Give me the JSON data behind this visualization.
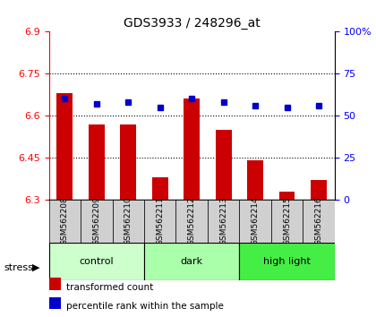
{
  "title": "GDS3933 / 248296_at",
  "samples": [
    "GSM562208",
    "GSM562209",
    "GSM562210",
    "GSM562211",
    "GSM562212",
    "GSM562213",
    "GSM562214",
    "GSM562215",
    "GSM562216"
  ],
  "transformed_counts": [
    6.68,
    6.57,
    6.57,
    6.38,
    6.66,
    6.55,
    6.44,
    6.33,
    6.37
  ],
  "percentile_ranks": [
    60,
    57,
    58,
    55,
    60,
    58,
    56,
    55,
    56
  ],
  "groups": [
    {
      "label": "control",
      "indices": [
        0,
        1,
        2
      ],
      "color": "#ccffcc"
    },
    {
      "label": "dark",
      "indices": [
        3,
        4,
        5
      ],
      "color": "#aaffaa"
    },
    {
      "label": "high light",
      "indices": [
        6,
        7,
        8
      ],
      "color": "#44ee44"
    }
  ],
  "ylim_left": [
    6.3,
    6.9
  ],
  "ylim_right": [
    0,
    100
  ],
  "yticks_left": [
    6.3,
    6.45,
    6.6,
    6.75,
    6.9
  ],
  "yticks_right": [
    0,
    25,
    50,
    75,
    100
  ],
  "ytick_labels_right": [
    "0",
    "25",
    "50",
    "75",
    "100%"
  ],
  "bar_color": "#cc0000",
  "dot_color": "#0000cc",
  "background_color": "#ffffff",
  "stress_label": "stress",
  "legend_bar_label": "transformed count",
  "legend_dot_label": "percentile rank within the sample",
  "name_bg_color": "#d0d0d0"
}
